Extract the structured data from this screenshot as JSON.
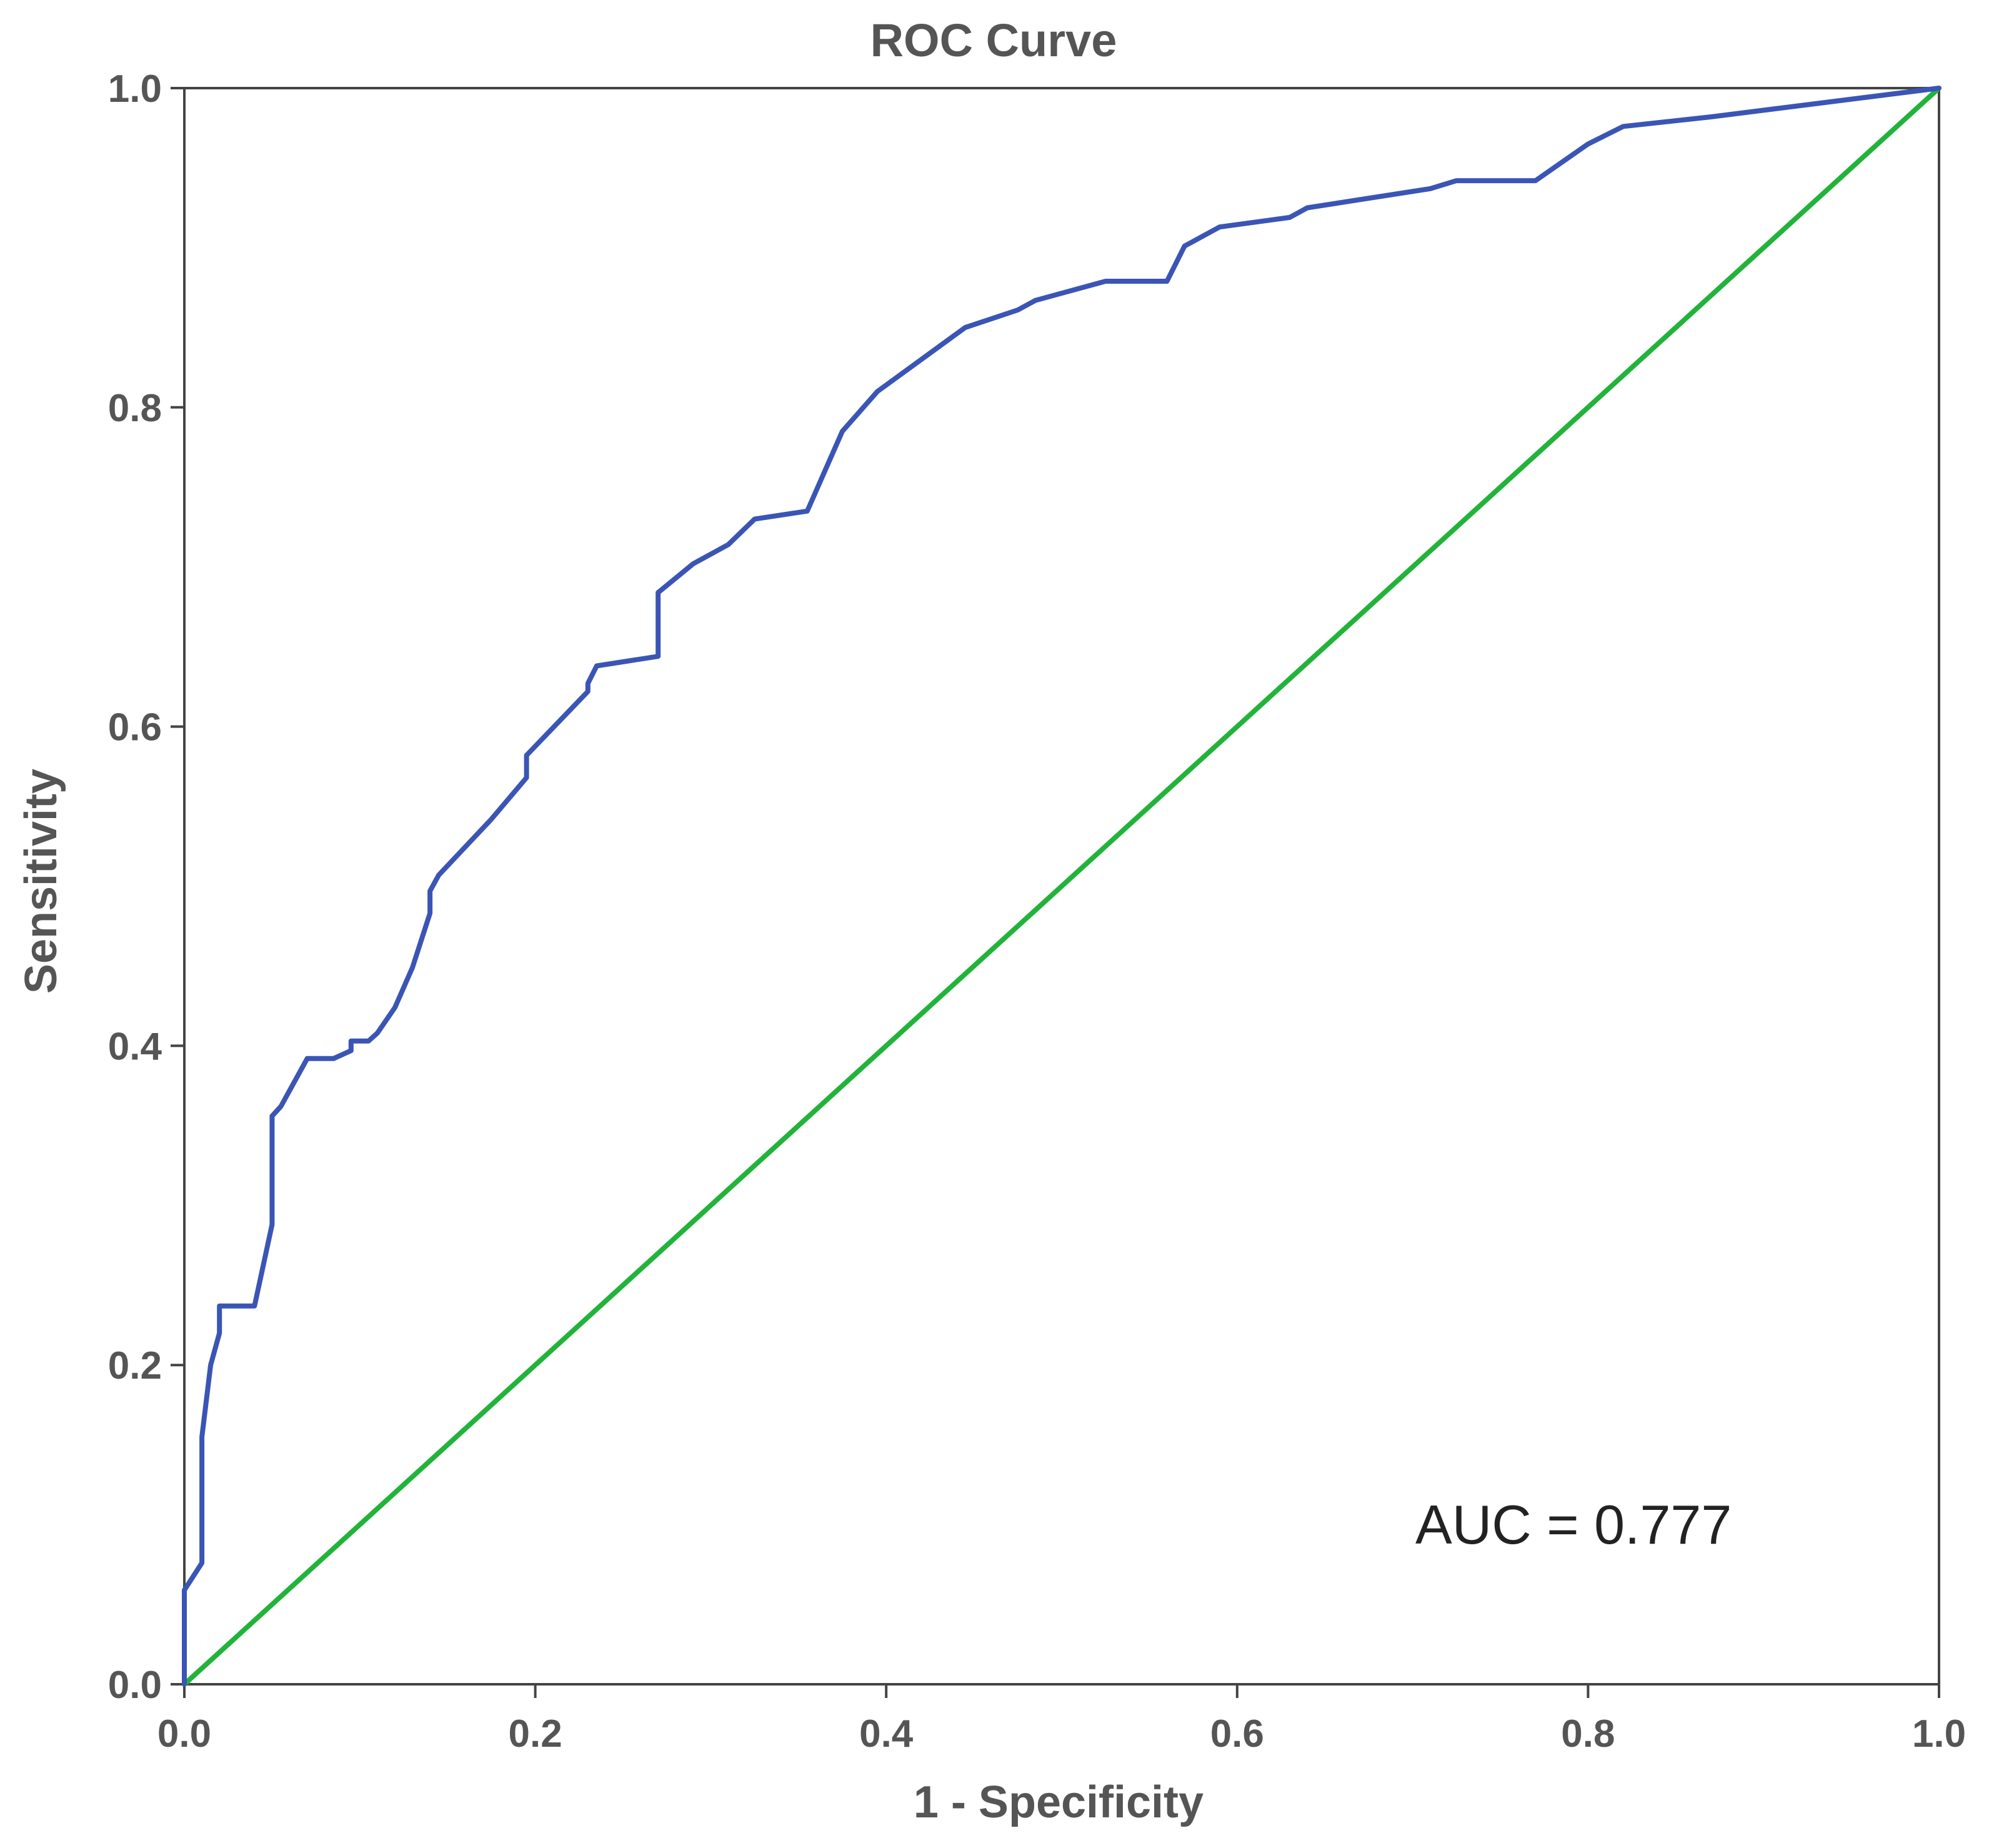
{
  "chart_data": {
    "type": "line",
    "title": "ROC Curve",
    "xlabel": "1 - Specificity",
    "ylabel": "Sensitivity",
    "xlim": [
      0,
      1
    ],
    "ylim": [
      0,
      1
    ],
    "xticks": [
      "0.0",
      "0.2",
      "0.4",
      "0.6",
      "0.8",
      "1.0"
    ],
    "yticks": [
      "0.0",
      "0.2",
      "0.4",
      "0.6",
      "0.8",
      "1.0"
    ],
    "grid": false,
    "annotation": "AUC = 0.777",
    "series": [
      {
        "color": "#3a55b5",
        "points": [
          [
            0.0,
            0.0
          ],
          [
            0.0,
            0.059
          ],
          [
            0.01,
            0.076
          ],
          [
            0.01,
            0.155
          ],
          [
            0.015,
            0.2
          ],
          [
            0.02,
            0.22
          ],
          [
            0.02,
            0.237
          ],
          [
            0.04,
            0.237
          ],
          [
            0.05,
            0.288
          ],
          [
            0.05,
            0.356
          ],
          [
            0.055,
            0.362
          ],
          [
            0.07,
            0.392
          ],
          [
            0.085,
            0.392
          ],
          [
            0.095,
            0.397
          ],
          [
            0.095,
            0.403
          ],
          [
            0.105,
            0.403
          ],
          [
            0.11,
            0.408
          ],
          [
            0.12,
            0.424
          ],
          [
            0.13,
            0.449
          ],
          [
            0.14,
            0.483
          ],
          [
            0.14,
            0.497
          ],
          [
            0.145,
            0.507
          ],
          [
            0.175,
            0.542
          ],
          [
            0.195,
            0.568
          ],
          [
            0.195,
            0.582
          ],
          [
            0.23,
            0.622
          ],
          [
            0.23,
            0.627
          ],
          [
            0.235,
            0.638
          ],
          [
            0.27,
            0.644
          ],
          [
            0.27,
            0.684
          ],
          [
            0.29,
            0.702
          ],
          [
            0.31,
            0.714
          ],
          [
            0.325,
            0.73
          ],
          [
            0.355,
            0.735
          ],
          [
            0.375,
            0.785
          ],
          [
            0.395,
            0.81
          ],
          [
            0.445,
            0.85
          ],
          [
            0.475,
            0.861
          ],
          [
            0.485,
            0.867
          ],
          [
            0.525,
            0.879
          ],
          [
            0.56,
            0.879
          ],
          [
            0.57,
            0.901
          ],
          [
            0.59,
            0.913
          ],
          [
            0.63,
            0.919
          ],
          [
            0.64,
            0.925
          ],
          [
            0.71,
            0.937
          ],
          [
            0.725,
            0.942
          ],
          [
            0.77,
            0.942
          ],
          [
            0.8,
            0.965
          ],
          [
            0.82,
            0.976
          ],
          [
            0.87,
            0.982
          ],
          [
            1.0,
            1.0
          ]
        ]
      },
      {
        "color": "#22b33a",
        "points": [
          [
            0.0,
            0.0
          ],
          [
            1.0,
            1.0
          ]
        ]
      }
    ]
  }
}
